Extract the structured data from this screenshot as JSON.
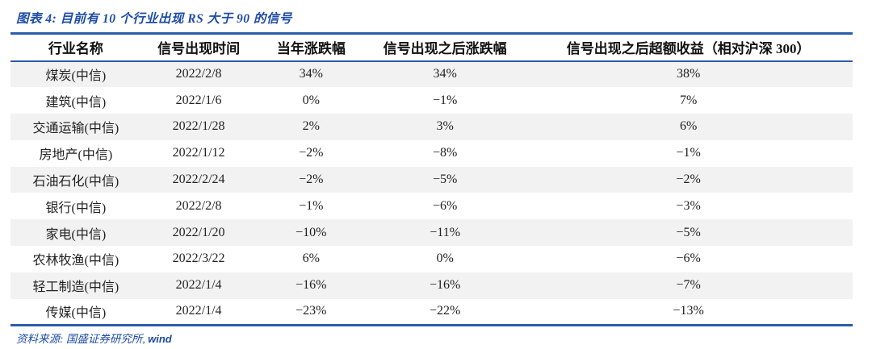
{
  "figure": {
    "title": "图表 4:  目前有 10 个行业出现 RS 大于 90 的信号",
    "source_prefix": "资料来源: 国盛证券研究所, ",
    "source_brand": "wind"
  },
  "table": {
    "columns": [
      "行业名称",
      "信号出现时间",
      "当年涨跌幅",
      "信号出现之后涨跌幅",
      "信号出现之后超额收益（相对沪深 300）"
    ],
    "rows": [
      [
        "煤炭(中信)",
        "2022/2/8",
        "34%",
        "34%",
        "38%"
      ],
      [
        "建筑(中信)",
        "2022/1/6",
        "0%",
        "−1%",
        "7%"
      ],
      [
        "交通运输(中信)",
        "2022/1/28",
        "2%",
        "3%",
        "6%"
      ],
      [
        "房地产(中信)",
        "2022/1/12",
        "−2%",
        "−8%",
        "−1%"
      ],
      [
        "石油石化(中信)",
        "2022/2/24",
        "−2%",
        "−5%",
        "−2%"
      ],
      [
        "银行(中信)",
        "2022/2/8",
        "−1%",
        "−6%",
        "−3%"
      ],
      [
        "家电(中信)",
        "2022/1/20",
        "−10%",
        "−11%",
        "−5%"
      ],
      [
        "农林牧渔(中信)",
        "2022/3/22",
        "6%",
        "0%",
        "−6%"
      ],
      [
        "轻工制造(中信)",
        "2022/1/4",
        "−16%",
        "−16%",
        "−7%"
      ],
      [
        "传媒(中信)",
        "2022/1/4",
        "−23%",
        "−22%",
        "−13%"
      ]
    ]
  },
  "colors": {
    "accent_blue_text": "#1e4ca6",
    "rule_blue": "#2a5caa",
    "stripe_gray": "#f2f2f2"
  }
}
